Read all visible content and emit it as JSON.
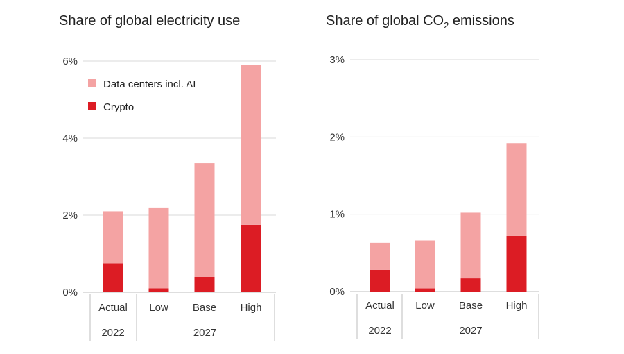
{
  "colors": {
    "data_centers": "#f4a3a3",
    "crypto": "#dc1c24",
    "grid": "#d9d9d9",
    "text": "#222222",
    "axis_text": "#333333"
  },
  "chart_data": [
    {
      "type": "bar",
      "stacked": true,
      "title": "Share of global electricity use",
      "title_parts": [
        "Share of global electricity use"
      ],
      "categories": [
        "Actual",
        "Low",
        "Base",
        "High"
      ],
      "category_groups": [
        {
          "label": "2022",
          "categories": [
            "Actual"
          ]
        },
        {
          "label": "2027",
          "categories": [
            "Low",
            "Base",
            "High"
          ]
        }
      ],
      "series": [
        {
          "name": "Crypto",
          "color": "#dc1c24",
          "values": [
            0.75,
            0.1,
            0.4,
            1.75
          ]
        },
        {
          "name": "Data centers incl. AI",
          "color": "#f4a3a3",
          "values": [
            1.35,
            2.1,
            2.95,
            4.15
          ]
        }
      ],
      "totals": [
        2.1,
        2.2,
        3.35,
        5.9
      ],
      "yticks": [
        0,
        2,
        4,
        6
      ],
      "ytick_labels": [
        "0%",
        "2%",
        "4%",
        "6%"
      ],
      "ylim": [
        0,
        6
      ],
      "legend": {
        "placement": "top-left",
        "entries": [
          {
            "label": "Data centers incl. AI",
            "color": "#f4a3a3"
          },
          {
            "label": "Crypto",
            "color": "#dc1c24"
          }
        ]
      }
    },
    {
      "type": "bar",
      "stacked": true,
      "title": "Share of global CO2 emissions",
      "title_parts": [
        "Share of global CO",
        "2",
        " emissions"
      ],
      "categories": [
        "Actual",
        "Low",
        "Base",
        "High"
      ],
      "category_groups": [
        {
          "label": "2022",
          "categories": [
            "Actual"
          ]
        },
        {
          "label": "2027",
          "categories": [
            "Low",
            "Base",
            "High"
          ]
        }
      ],
      "series": [
        {
          "name": "Crypto",
          "color": "#dc1c24",
          "values": [
            0.28,
            0.04,
            0.17,
            0.72
          ]
        },
        {
          "name": "Data centers incl. AI",
          "color": "#f4a3a3",
          "values": [
            0.35,
            0.62,
            0.85,
            1.2
          ]
        }
      ],
      "totals": [
        0.63,
        0.66,
        1.02,
        1.92
      ],
      "yticks": [
        0,
        1,
        2,
        3
      ],
      "ytick_labels": [
        "0%",
        "1%",
        "2%",
        "3%"
      ],
      "ylim": [
        0,
        3
      ]
    }
  ]
}
